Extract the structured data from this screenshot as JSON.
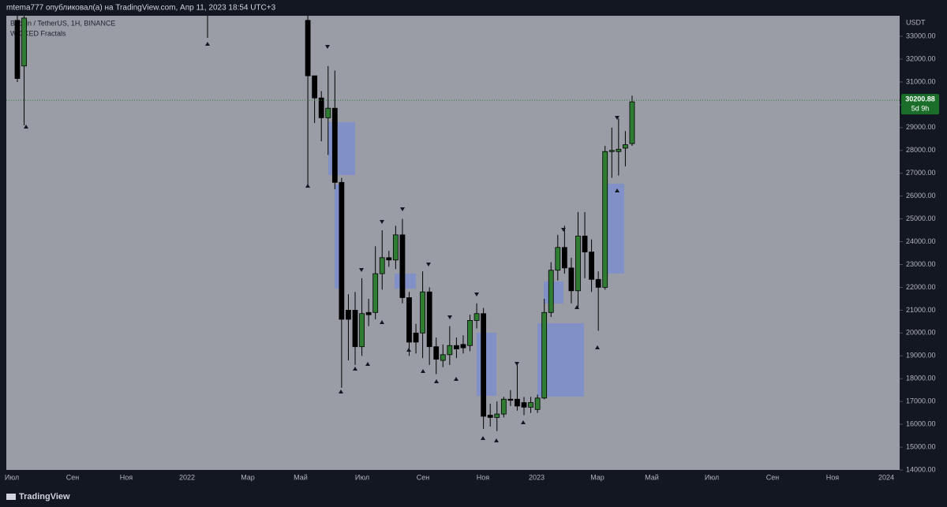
{
  "header": {
    "publisher": "mtema777 опубликовал(а) на TradingView.com, Апр 11, 2023 18:54 UTC+3"
  },
  "footer": {
    "brand": "TradingView"
  },
  "chart_data": {
    "type": "candlestick",
    "symbol": "Bitcoin / TetherUS, 1H, BINANCE",
    "indicator": "WICKED Fractals",
    "currency": "USDT",
    "up_color": "#2e7d32",
    "down_color": "#000000",
    "categories": [
      null,
      null,
      null,
      null,
      null,
      null,
      null,
      null,
      null,
      null,
      null,
      null,
      null,
      null,
      null,
      null,
      null,
      null,
      null,
      null,
      null,
      null,
      null,
      null,
      null,
      null,
      null,
      null,
      null,
      null,
      null,
      null,
      null,
      null,
      null,
      null,
      null,
      null,
      null,
      null,
      null,
      null,
      null,
      null,
      null,
      null,
      null,
      null,
      null,
      null,
      null,
      null,
      null,
      null,
      null,
      null,
      null,
      null,
      null,
      null,
      null,
      null,
      null,
      null,
      null,
      null,
      null,
      null,
      null,
      null,
      null,
      null,
      null,
      null,
      null,
      null,
      null,
      null,
      null,
      null,
      null,
      null,
      null,
      null,
      null,
      null,
      null,
      null,
      null,
      null,
      null,
      null
    ],
    "open": [
      33700,
      31700,
      null,
      null,
      null,
      null,
      null,
      null,
      null,
      null,
      null,
      null,
      null,
      null,
      null,
      null,
      null,
      null,
      null,
      null,
      null,
      null,
      null,
      null,
      null,
      null,
      null,
      null,
      null,
      null,
      null,
      null,
      null,
      null,
      null,
      null,
      null,
      null,
      null,
      null,
      null,
      null,
      null,
      33700,
      31270,
      30300,
      29430,
      29850,
      26600,
      21000,
      21000,
      19400,
      20900,
      20900,
      22600,
      23300,
      23200,
      24300,
      21550,
      20000,
      20000,
      21800,
      19400,
      18800,
      19050,
      19450,
      19500,
      19450,
      20550,
      20850,
      16400,
      16300,
      16450,
      17100,
      17100,
      16950,
      16750,
      16650,
      17150,
      20900,
      22750,
      23750,
      22850,
      21850,
      24250,
      23550,
      22350,
      22000,
      27950,
      27950,
      28100,
      28300
    ],
    "high": [
      33900,
      33900,
      null,
      null,
      null,
      null,
      null,
      null,
      null,
      null,
      null,
      null,
      null,
      null,
      null,
      null,
      null,
      null,
      null,
      null,
      null,
      null,
      null,
      null,
      null,
      null,
      null,
      null,
      null,
      null,
      null,
      null,
      null,
      null,
      null,
      null,
      null,
      null,
      null,
      null,
      null,
      null,
      null,
      33900,
      31270,
      30600,
      31700,
      31500,
      26800,
      21700,
      21800,
      22400,
      21500,
      23800,
      24500,
      23600,
      24700,
      25000,
      21800,
      20400,
      22700,
      22000,
      19800,
      19500,
      20300,
      19800,
      19900,
      20800,
      21300,
      21100,
      16900,
      17000,
      17200,
      17500,
      18600,
      17200,
      17200,
      17300,
      21500,
      23100,
      24300,
      24700,
      23300,
      25300,
      25300,
      24100,
      22700,
      28200,
      29000,
      29400,
      28850,
      30400
    ],
    "low": [
      31000,
      29100,
      null,
      null,
      null,
      null,
      null,
      null,
      null,
      null,
      null,
      null,
      null,
      null,
      null,
      null,
      null,
      null,
      null,
      null,
      null,
      null,
      null,
      null,
      null,
      null,
      null,
      null,
      null,
      null,
      null,
      null,
      null,
      null,
      null,
      null,
      null,
      null,
      null,
      null,
      null,
      null,
      null,
      26500,
      29200,
      28400,
      27800,
      26300,
      17600,
      18800,
      18600,
      19000,
      20300,
      20600,
      21900,
      22900,
      22800,
      21300,
      19000,
      19100,
      18900,
      18600,
      18200,
      18500,
      18600,
      18900,
      19100,
      19200,
      20200,
      15800,
      15900,
      15700,
      16300,
      16800,
      16600,
      16400,
      16500,
      16500,
      17100,
      20700,
      22300,
      22600,
      21300,
      21100,
      22400,
      21800,
      20100,
      21900,
      26800,
      26900,
      27300,
      28200
    ],
    "close": [
      31150,
      33800,
      null,
      null,
      null,
      null,
      null,
      null,
      null,
      null,
      null,
      null,
      null,
      null,
      null,
      null,
      null,
      null,
      null,
      null,
      null,
      null,
      null,
      null,
      null,
      null,
      null,
      null,
      null,
      null,
      null,
      null,
      null,
      null,
      null,
      null,
      null,
      null,
      null,
      null,
      null,
      null,
      null,
      31270,
      30300,
      29430,
      29850,
      26600,
      20600,
      20600,
      19400,
      20850,
      20800,
      22600,
      23300,
      23200,
      24300,
      21550,
      19600,
      19600,
      21800,
      19400,
      18850,
      19050,
      19450,
      19300,
      19350,
      20550,
      20850,
      16350,
      16300,
      16450,
      17100,
      17050,
      16800,
      16750,
      16950,
      17150,
      20900,
      22750,
      23750,
      22850,
      21850,
      24250,
      23550,
      22350,
      22000,
      27950,
      28000,
      28050,
      28250,
      30130
    ],
    "last_price": {
      "value": 30200.88,
      "label": "30200.88"
    },
    "countdown": "5d 9h",
    "ylim": [
      14000,
      33900
    ],
    "yticks": [
      {
        "value": 14000,
        "label": "14000.00"
      },
      {
        "value": 15000,
        "label": "15000.00"
      },
      {
        "value": 16000,
        "label": "16000.00"
      },
      {
        "value": 17000,
        "label": "17000.00"
      },
      {
        "value": 18000,
        "label": "18000.00"
      },
      {
        "value": 19000,
        "label": "19000.00"
      },
      {
        "value": 20000,
        "label": "20000.00"
      },
      {
        "value": 21000,
        "label": "21000.00"
      },
      {
        "value": 22000,
        "label": "22000.00"
      },
      {
        "value": 23000,
        "label": "23000.00"
      },
      {
        "value": 24000,
        "label": "24000.00"
      },
      {
        "value": 25000,
        "label": "25000.00"
      },
      {
        "value": 26000,
        "label": "26000.00"
      },
      {
        "value": 27000,
        "label": "27000.00"
      },
      {
        "value": 28000,
        "label": "28000.00"
      },
      {
        "value": 29000,
        "label": "29000.00"
      },
      {
        "value": 30000,
        "label": "30000.00"
      },
      {
        "value": 31000,
        "label": "31000.00"
      },
      {
        "value": 32000,
        "label": "32000.00"
      },
      {
        "value": 33000,
        "label": "33000.00"
      }
    ],
    "x_axis_labels": [
      "Июл",
      "Сен",
      "Ноя",
      "2022",
      "Мар",
      "Май",
      "Июл",
      "Сен",
      "Ноя",
      "2023",
      "Мар",
      "Май",
      "Июл",
      "Сен",
      "Ноя",
      "2024"
    ]
  }
}
